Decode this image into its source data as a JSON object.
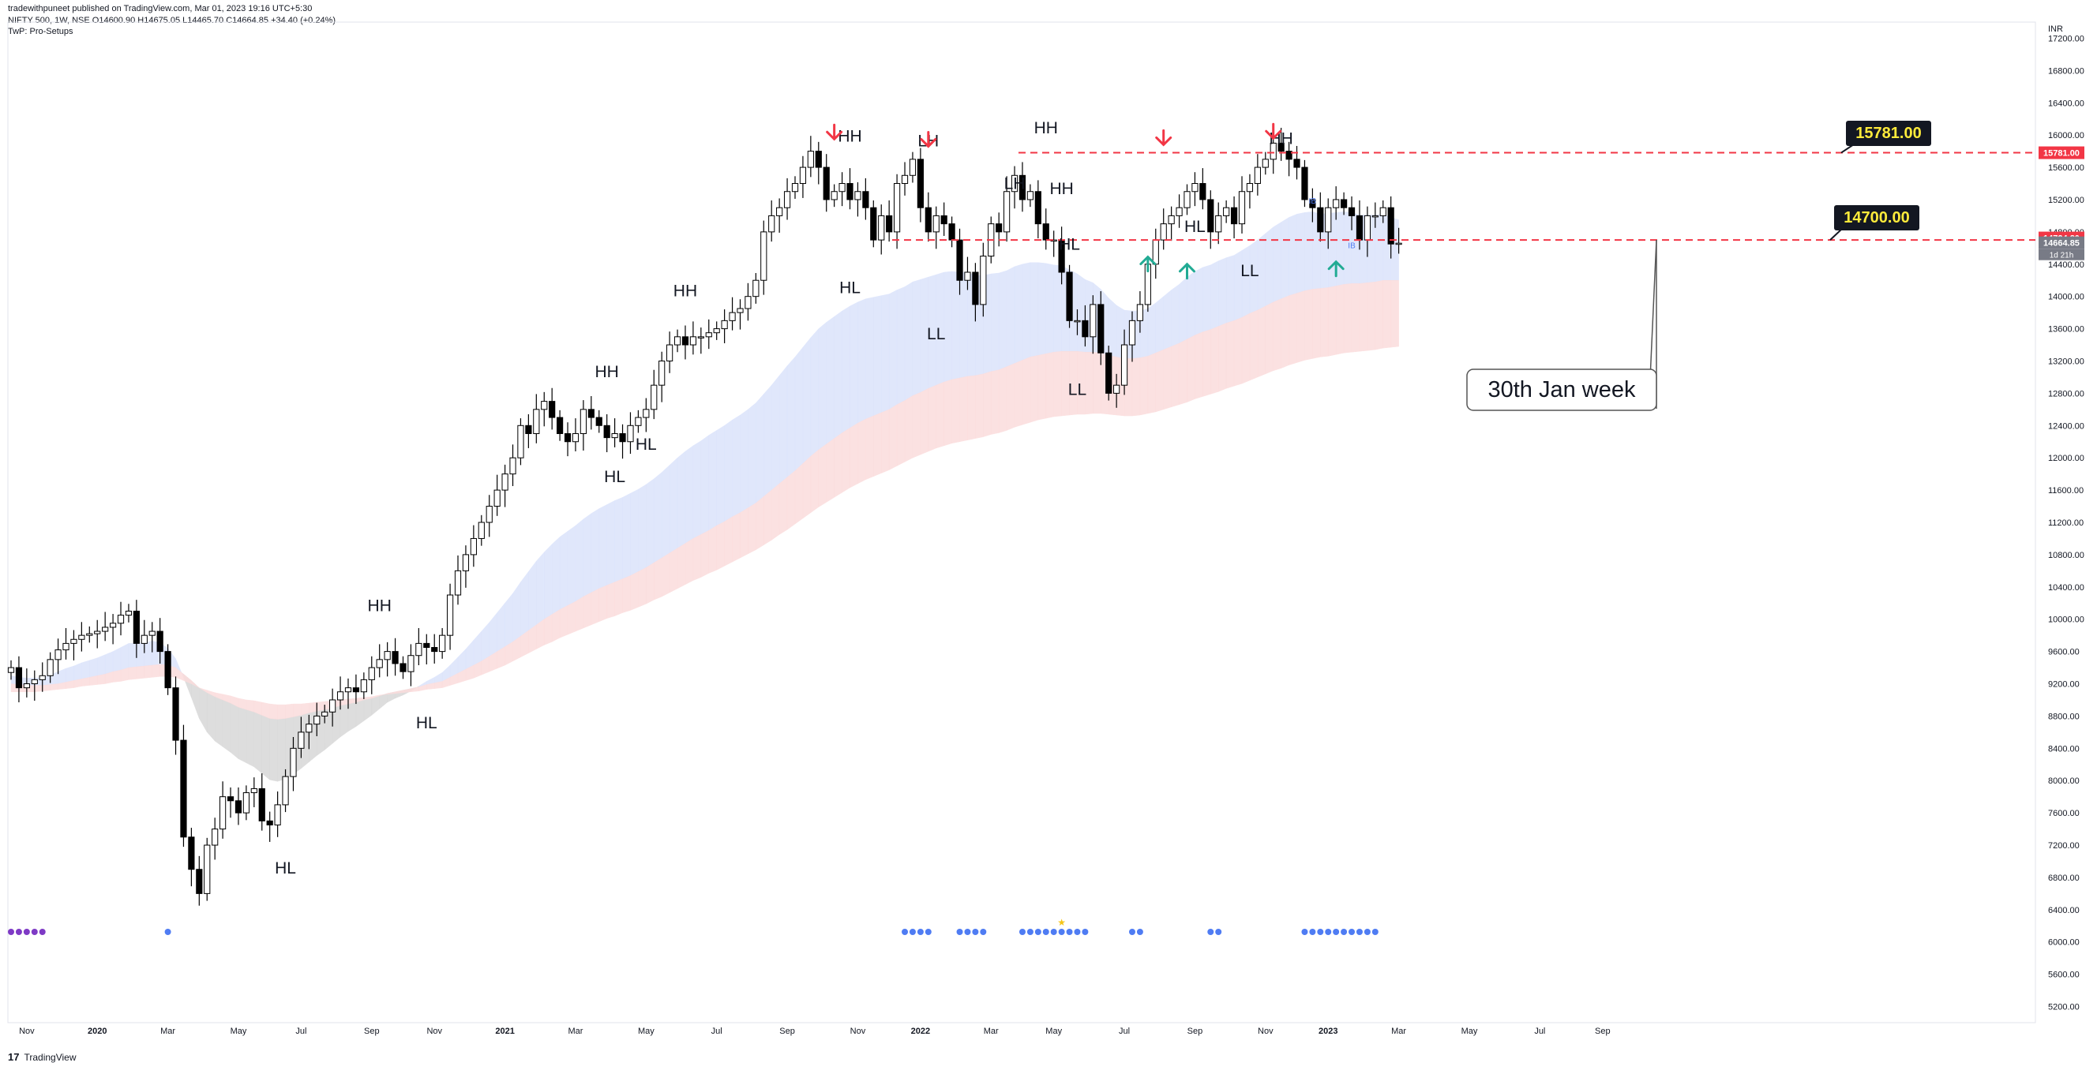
{
  "header": {
    "published": "tradewithpuneet published on TradingView.com, Mar 01, 2023 19:16 UTC+5:30",
    "symbol_line": "NIFTY 500, 1W, NSE  O14600.90  H14675.05  L14465.70  C14664.85  +34.40 (+0.24%)",
    "indicator": "TwP: Pro-Setups"
  },
  "footer": {
    "brand": "TradingView",
    "logo_glyph": "17"
  },
  "colors": {
    "up": "#ffffff",
    "down": "#000000",
    "wick": "#000000",
    "red_line": "#f23645",
    "blue_band": "#dbe3fb",
    "red_band": "#fbdcdc",
    "gray_band": "#d8d8d8",
    "label_bg": "#131722",
    "label_text": "#ffeb3b",
    "up_arrow": "#22ab94",
    "down_arrow": "#f23645",
    "dot_blue": "#4f7cf3",
    "dot_purple": "#7e3ac5"
  },
  "chart_data": {
    "type": "candlestick",
    "title": "NIFTY 500, 1W, NSE",
    "currency": "INR",
    "ylim": [
      5000,
      17400
    ],
    "y_ticks": [
      5200,
      5600,
      6000,
      6400,
      6800,
      7200,
      7600,
      8000,
      8400,
      8800,
      9200,
      9600,
      10000,
      10400,
      10800,
      11200,
      11600,
      12000,
      12400,
      12800,
      13200,
      13600,
      14000,
      14400,
      14800,
      15200,
      15600,
      16000,
      16400,
      16800,
      17200
    ],
    "x_labels": [
      {
        "label": "Nov",
        "week": 2
      },
      {
        "label": "2020",
        "week": 11
      },
      {
        "label": "Mar",
        "week": 20
      },
      {
        "label": "May",
        "week": 29
      },
      {
        "label": "Jul",
        "week": 37
      },
      {
        "label": "Sep",
        "week": 46
      },
      {
        "label": "Nov",
        "week": 54
      },
      {
        "label": "2021",
        "week": 63
      },
      {
        "label": "Mar",
        "week": 72
      },
      {
        "label": "May",
        "week": 81
      },
      {
        "label": "Jul",
        "week": 90
      },
      {
        "label": "Sep",
        "week": 99
      },
      {
        "label": "Nov",
        "week": 108
      },
      {
        "label": "2022",
        "week": 116
      },
      {
        "label": "Mar",
        "week": 125
      },
      {
        "label": "May",
        "week": 133
      },
      {
        "label": "Jul",
        "week": 142
      },
      {
        "label": "Sep",
        "week": 151
      },
      {
        "label": "Nov",
        "week": 160
      },
      {
        "label": "2023",
        "week": 168
      },
      {
        "label": "Mar",
        "week": 177
      },
      {
        "label": "May",
        "week": 186
      },
      {
        "label": "Jul",
        "week": 195
      },
      {
        "label": "Sep",
        "week": 203
      }
    ],
    "closes": [
      9400,
      9150,
      9200,
      9250,
      9300,
      9500,
      9620,
      9700,
      9750,
      9800,
      9820,
      9850,
      9900,
      9950,
      10050,
      10100,
      9700,
      9800,
      9850,
      9600,
      9150,
      8500,
      7300,
      6900,
      6600,
      7200,
      7400,
      7800,
      7750,
      7600,
      7850,
      7900,
      7500,
      7450,
      7700,
      8050,
      8400,
      8600,
      8700,
      8800,
      8850,
      9000,
      9100,
      9150,
      9100,
      9250,
      9400,
      9500,
      9600,
      9450,
      9350,
      9550,
      9700,
      9650,
      9600,
      9800,
      10300,
      10600,
      10800,
      11000,
      11200,
      11400,
      11600,
      11800,
      12000,
      12400,
      12300,
      12600,
      12700,
      12500,
      12300,
      12200,
      12300,
      12600,
      12500,
      12400,
      12250,
      12300,
      12200,
      12400,
      12500,
      12600,
      12900,
      13200,
      13400,
      13500,
      13400,
      13500,
      13500,
      13550,
      13600,
      13700,
      13800,
      13850,
      14000,
      14200,
      14800,
      15000,
      15100,
      15300,
      15400,
      15600,
      15800,
      15600,
      15200,
      15300,
      15400,
      15200,
      15300,
      15100,
      14700,
      15000,
      14800,
      15400,
      15500,
      15700,
      15100,
      14800,
      15000,
      14900,
      14700,
      14200,
      14300,
      13900,
      14500,
      14900,
      14800,
      15300,
      15500,
      15200,
      15300,
      14900,
      14700,
      14700,
      14300,
      13700,
      13700,
      13500,
      13900,
      13300,
      12800,
      12900,
      13400,
      13700,
      13900,
      14400,
      14700,
      14900,
      15000,
      15100,
      15300,
      15400,
      15200,
      14800,
      15000,
      15100,
      14900,
      15300,
      15400,
      15600,
      15700,
      15900,
      15800,
      15700,
      15600,
      15200,
      15100,
      14800,
      15100,
      15200,
      15100,
      15000,
      14700,
      15000,
      15000,
      15100,
      14650,
      14660
    ],
    "ema_fast": [
      9300,
      9280,
      9270,
      9270,
      9280,
      9310,
      9350,
      9390,
      9420,
      9460,
      9490,
      9520,
      9560,
      9600,
      9650,
      9700,
      9700,
      9710,
      9730,
      9710,
      9640,
      9510,
      9280,
      9030,
      8770,
      8600,
      8490,
      8420,
      8350,
      8270,
      8220,
      8170,
      8090,
      8010,
      7990,
      8020,
      8080,
      8150,
      8230,
      8310,
      8380,
      8460,
      8540,
      8610,
      8670,
      8740,
      8810,
      8890,
      8970,
      9020,
      9060,
      9110,
      9170,
      9230,
      9280,
      9340,
      9430,
      9530,
      9630,
      9740,
      9850,
      9960,
      10080,
      10200,
      10320,
      10460,
      10590,
      10720,
      10830,
      10930,
      11020,
      11090,
      11160,
      11240,
      11310,
      11370,
      11420,
      11470,
      11510,
      11560,
      11610,
      11670,
      11740,
      11820,
      11910,
      12000,
      12080,
      12150,
      12210,
      12280,
      12340,
      12400,
      12470,
      12530,
      12600,
      12680,
      12790,
      12900,
      13020,
      13140,
      13250,
      13370,
      13490,
      13600,
      13680,
      13750,
      13820,
      13880,
      13930,
      13970,
      13990,
      14010,
      14030,
      14080,
      14120,
      14180,
      14210,
      14240,
      14270,
      14300,
      14310,
      14300,
      14300,
      14260,
      14260,
      14280,
      14290,
      14320,
      14370,
      14400,
      14420,
      14420,
      14410,
      14390,
      14380,
      14330,
      14280,
      14210,
      14170,
      14090,
      13980,
      13890,
      13830,
      13820,
      13820,
      13850,
      13920,
      14000,
      14080,
      14150,
      14240,
      14310,
      14360,
      14390,
      14440,
      14480,
      14510,
      14570,
      14630,
      14700,
      14780,
      14860,
      14920,
      14980,
      15020,
      15040,
      15050,
      15020,
      15030,
      15040,
      15050,
      15040,
      15010,
      15010,
      15010,
      15020,
      14980,
      14950
    ],
    "ema_mid": [
      9200,
      9190,
      9180,
      9180,
      9180,
      9190,
      9200,
      9220,
      9240,
      9260,
      9280,
      9300,
      9320,
      9350,
      9370,
      9400,
      9410,
      9420,
      9430,
      9440,
      9430,
      9400,
      9320,
      9240,
      9150,
      9090,
      9040,
      9000,
      8960,
      8910,
      8880,
      8850,
      8810,
      8770,
      8760,
      8770,
      8790,
      8810,
      8840,
      8860,
      8880,
      8900,
      8930,
      8950,
      8970,
      9000,
      9020,
      9050,
      9080,
      9100,
      9120,
      9140,
      9160,
      9190,
      9210,
      9230,
      9280,
      9330,
      9380,
      9430,
      9480,
      9540,
      9600,
      9660,
      9720,
      9790,
      9860,
      9930,
      10000,
      10060,
      10120,
      10170,
      10220,
      10280,
      10330,
      10380,
      10420,
      10460,
      10500,
      10540,
      10590,
      10640,
      10700,
      10760,
      10820,
      10880,
      10940,
      11000,
      11050,
      11100,
      11160,
      11210,
      11270,
      11320,
      11380,
      11440,
      11520,
      11600,
      11680,
      11760,
      11840,
      11930,
      12020,
      12100,
      12170,
      12240,
      12310,
      12370,
      12430,
      12480,
      12520,
      12560,
      12600,
      12660,
      12710,
      12770,
      12810,
      12860,
      12900,
      12940,
      12970,
      12990,
      13010,
      13020,
      13040,
      13070,
      13090,
      13130,
      13170,
      13210,
      13250,
      13270,
      13290,
      13310,
      13320,
      13320,
      13320,
      13310,
      13310,
      13300,
      13270,
      13250,
      13230,
      13230,
      13240,
      13260,
      13300,
      13340,
      13380,
      13420,
      13470,
      13520,
      13560,
      13590,
      13630,
      13670,
      13700,
      13740,
      13790,
      13830,
      13880,
      13930,
      13970,
      14010,
      14040,
      14070,
      14090,
      14100,
      14110,
      14130,
      14150,
      14160,
      14160,
      14170,
      14180,
      14200,
      14200,
      14200
    ],
    "ema_slow": [
      9100,
      9100,
      9100,
      9100,
      9110,
      9120,
      9130,
      9140,
      9150,
      9170,
      9180,
      9190,
      9200,
      9220,
      9230,
      9250,
      9260,
      9270,
      9280,
      9290,
      9290,
      9280,
      9240,
      9200,
      9150,
      9120,
      9090,
      9070,
      9050,
      9020,
      9000,
      8990,
      8970,
      8950,
      8940,
      8940,
      8950,
      8950,
      8960,
      8970,
      8980,
      8990,
      9000,
      9010,
      9020,
      9030,
      9040,
      9060,
      9070,
      9080,
      9090,
      9100,
      9110,
      9130,
      9140,
      9150,
      9180,
      9210,
      9240,
      9270,
      9310,
      9350,
      9390,
      9430,
      9480,
      9530,
      9580,
      9630,
      9680,
      9720,
      9770,
      9810,
      9850,
      9890,
      9930,
      9970,
      10010,
      10040,
      10080,
      10110,
      10150,
      10190,
      10240,
      10280,
      10330,
      10380,
      10430,
      10480,
      10520,
      10570,
      10610,
      10660,
      10710,
      10760,
      10810,
      10860,
      10920,
      10980,
      11050,
      11110,
      11180,
      11250,
      11320,
      11390,
      11450,
      11510,
      11570,
      11630,
      11680,
      11730,
      11770,
      11810,
      11850,
      11900,
      11950,
      12000,
      12040,
      12080,
      12120,
      12150,
      12180,
      12200,
      12220,
      12240,
      12260,
      12290,
      12310,
      12340,
      12380,
      12410,
      12440,
      12470,
      12490,
      12510,
      12520,
      12530,
      12540,
      12540,
      12550,
      12550,
      12540,
      12530,
      12520,
      12520,
      12530,
      12550,
      12570,
      12600,
      12630,
      12660,
      12690,
      12730,
      12760,
      12790,
      12820,
      12860,
      12890,
      12920,
      12960,
      13000,
      13040,
      13080,
      13110,
      13150,
      13180,
      13210,
      13230,
      13250,
      13260,
      13280,
      13300,
      13310,
      13320,
      13330,
      13340,
      13360,
      13370,
      13380
    ],
    "hlines": [
      {
        "value": 15781,
        "label": "15781.00"
      },
      {
        "value": 14700,
        "label": "14700.00"
      }
    ],
    "price_tags": {
      "level": "15781.00",
      "close": "14724.80",
      "last": "14664.85",
      "timer": "1d 21h"
    },
    "swing_labels": [
      {
        "text": "HH",
        "week": 132,
        "price": 16020
      },
      {
        "text": "HH",
        "week": 107,
        "price": 15920
      },
      {
        "text": "HH",
        "week": 162,
        "price": 15890
      },
      {
        "text": "LH",
        "week": 117,
        "price": 15860
      },
      {
        "text": "HH",
        "week": 134,
        "price": 15270
      },
      {
        "text": "HH",
        "week": 86,
        "price": 14000
      },
      {
        "text": "HH",
        "week": 76,
        "price": 13000
      },
      {
        "text": "HH",
        "week": 47,
        "price": 10100
      },
      {
        "text": "LH",
        "week": 128,
        "price": 15330
      },
      {
        "text": "HL",
        "week": 107,
        "price": 14040
      },
      {
        "text": "HL",
        "week": 135,
        "price": 14580
      },
      {
        "text": "HL",
        "week": 151,
        "price": 14800
      },
      {
        "text": "LL",
        "week": 118,
        "price": 13470
      },
      {
        "text": "LL",
        "week": 136,
        "price": 12780
      },
      {
        "text": "LL",
        "week": 158,
        "price": 14250
      },
      {
        "text": "HL",
        "week": 77,
        "price": 11700
      },
      {
        "text": "HL",
        "week": 81,
        "price": 12100
      },
      {
        "text": "HL",
        "week": 53,
        "price": 8650
      },
      {
        "text": "HL",
        "week": 35,
        "price": 6850
      }
    ],
    "down_arrows": [
      {
        "week": 105,
        "price": 15950
      },
      {
        "week": 117,
        "price": 15860
      },
      {
        "week": 147,
        "price": 15880
      },
      {
        "week": 161,
        "price": 15960
      }
    ],
    "up_arrows": [
      {
        "week": 145,
        "price": 14490
      },
      {
        "week": 150,
        "price": 14400
      },
      {
        "week": 169,
        "price": 14430
      }
    ],
    "annotation": {
      "text": "30th Jan week",
      "week": 176,
      "price": 12900
    },
    "ib_marks": [
      {
        "text": "IB",
        "week": 166,
        "price": 15150
      },
      {
        "text": "IB",
        "week": 171,
        "price": 14600
      }
    ],
    "dots_blue": [
      20,
      114,
      115,
      116,
      117,
      121,
      122,
      123,
      124,
      129,
      130,
      131,
      132,
      133,
      134,
      135,
      136,
      137,
      143,
      144,
      153,
      154,
      165,
      166,
      167,
      168,
      169,
      170,
      171,
      172,
      173,
      174
    ],
    "dots_purple": [
      0,
      1,
      2,
      3,
      4
    ],
    "star_week": 134
  }
}
